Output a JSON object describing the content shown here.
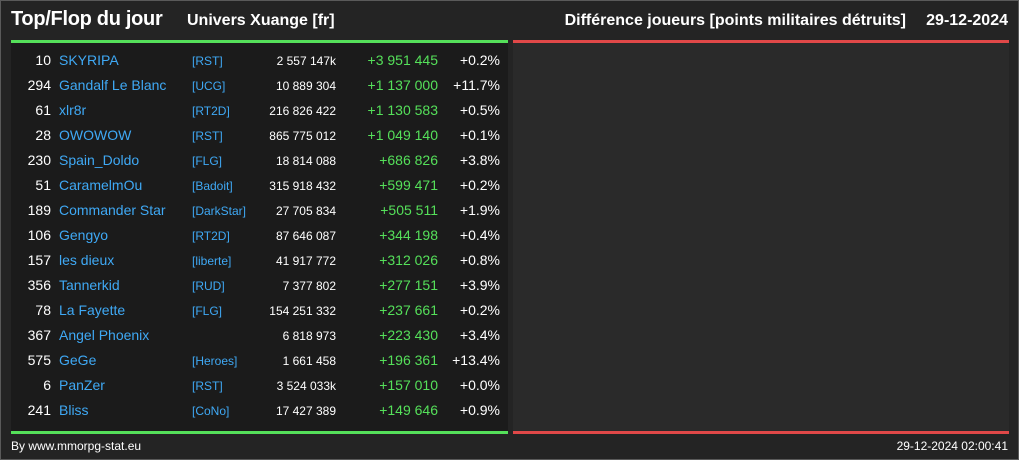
{
  "header": {
    "title": "Top/Flop du jour",
    "universe": "Univers Xuange [fr]",
    "subtitle": "Différence joueurs [points militaires détruits]",
    "date": "29-12-2024"
  },
  "colors": {
    "green": "#55e05a",
    "red": "#e04848",
    "link": "#3fa9f5"
  },
  "rows": [
    {
      "rank": "10",
      "name": "SKYRIPA",
      "alliance": "[RST]",
      "points": "2 557 147k",
      "delta": "+3 951 445",
      "pct": "+0.2%"
    },
    {
      "rank": "294",
      "name": "Gandalf Le Blanc",
      "alliance": "[UCG]",
      "points": "10 889 304",
      "delta": "+1 137 000",
      "pct": "+11.7%"
    },
    {
      "rank": "61",
      "name": "xlr8r",
      "alliance": "[RT2D]",
      "points": "216 826 422",
      "delta": "+1 130 583",
      "pct": "+0.5%"
    },
    {
      "rank": "28",
      "name": "OWOWOW",
      "alliance": "[RST]",
      "points": "865 775 012",
      "delta": "+1 049 140",
      "pct": "+0.1%"
    },
    {
      "rank": "230",
      "name": "Spain_Doldo",
      "alliance": "[FLG]",
      "points": "18 814 088",
      "delta": "+686 826",
      "pct": "+3.8%"
    },
    {
      "rank": "51",
      "name": "CaramelmOu",
      "alliance": "[Badoit]",
      "points": "315 918 432",
      "delta": "+599 471",
      "pct": "+0.2%"
    },
    {
      "rank": "189",
      "name": "Commander Star",
      "alliance": "[DarkStar]",
      "points": "27 705 834",
      "delta": "+505 511",
      "pct": "+1.9%"
    },
    {
      "rank": "106",
      "name": "Gengyo",
      "alliance": "[RT2D]",
      "points": "87 646 087",
      "delta": "+344 198",
      "pct": "+0.4%"
    },
    {
      "rank": "157",
      "name": "les dieux",
      "alliance": "[liberte]",
      "points": "41 917 772",
      "delta": "+312 026",
      "pct": "+0.8%"
    },
    {
      "rank": "356",
      "name": "Tannerkid",
      "alliance": "[RUD]",
      "points": "7 377 802",
      "delta": "+277 151",
      "pct": "+3.9%"
    },
    {
      "rank": "78",
      "name": "La Fayette",
      "alliance": "[FLG]",
      "points": "154 251 332",
      "delta": "+237 661",
      "pct": "+0.2%"
    },
    {
      "rank": "367",
      "name": "Angel Phoenix",
      "alliance": "",
      "points": "6 818 973",
      "delta": "+223 430",
      "pct": "+3.4%"
    },
    {
      "rank": "575",
      "name": "GeGe",
      "alliance": "[Heroes]",
      "points": "1 661 458",
      "delta": "+196 361",
      "pct": "+13.4%"
    },
    {
      "rank": "6",
      "name": "PanZer",
      "alliance": "[RST]",
      "points": "3 524 033k",
      "delta": "+157 010",
      "pct": "+0.0%"
    },
    {
      "rank": "241",
      "name": "Bliss",
      "alliance": "[CoNo]",
      "points": "17 427 389",
      "delta": "+149 646",
      "pct": "+0.9%"
    }
  ],
  "footer": {
    "credit": "By www.mmorpg-stat.eu",
    "timestamp": "29-12-2024 02:00:41"
  }
}
